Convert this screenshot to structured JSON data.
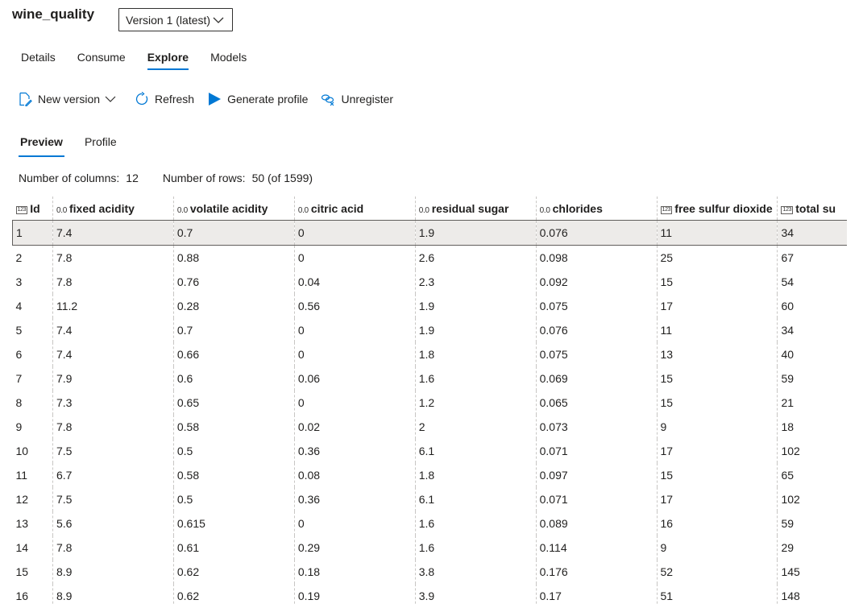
{
  "dataset": {
    "title": "wine_quality",
    "version_selected": "Version 1 (latest)"
  },
  "tabs": [
    {
      "label": "Details",
      "active": false
    },
    {
      "label": "Consume",
      "active": false
    },
    {
      "label": "Explore",
      "active": true
    },
    {
      "label": "Models",
      "active": false
    }
  ],
  "toolbar": {
    "new_version": "New version",
    "refresh": "Refresh",
    "generate_profile": "Generate profile",
    "unregister": "Unregister"
  },
  "subtabs": [
    {
      "label": "Preview",
      "active": true
    },
    {
      "label": "Profile",
      "active": false
    }
  ],
  "summary": {
    "columns_label": "Number of columns:",
    "columns_value": "12",
    "rows_label": "Number of rows:",
    "rows_value": "50 (of 1599)"
  },
  "table": {
    "columns": [
      {
        "name": "Id",
        "type": "int",
        "type_glyph": "123"
      },
      {
        "name": "fixed acidity",
        "type": "float",
        "type_glyph": "0.0"
      },
      {
        "name": "volatile acidity",
        "type": "float",
        "type_glyph": "0.0"
      },
      {
        "name": "citric acid",
        "type": "float",
        "type_glyph": "0.0"
      },
      {
        "name": "residual sugar",
        "type": "float",
        "type_glyph": "0.0"
      },
      {
        "name": "chlorides",
        "type": "float",
        "type_glyph": "0.0"
      },
      {
        "name": "free sulfur dioxide",
        "type": "int",
        "type_glyph": "123"
      },
      {
        "name": "total su",
        "type": "int",
        "type_glyph": "123"
      }
    ],
    "rows": [
      [
        "1",
        "7.4",
        "0.7",
        "0",
        "1.9",
        "0.076",
        "11",
        "34"
      ],
      [
        "2",
        "7.8",
        "0.88",
        "0",
        "2.6",
        "0.098",
        "25",
        "67"
      ],
      [
        "3",
        "7.8",
        "0.76",
        "0.04",
        "2.3",
        "0.092",
        "15",
        "54"
      ],
      [
        "4",
        "11.2",
        "0.28",
        "0.56",
        "1.9",
        "0.075",
        "17",
        "60"
      ],
      [
        "5",
        "7.4",
        "0.7",
        "0",
        "1.9",
        "0.076",
        "11",
        "34"
      ],
      [
        "6",
        "7.4",
        "0.66",
        "0",
        "1.8",
        "0.075",
        "13",
        "40"
      ],
      [
        "7",
        "7.9",
        "0.6",
        "0.06",
        "1.6",
        "0.069",
        "15",
        "59"
      ],
      [
        "8",
        "7.3",
        "0.65",
        "0",
        "1.2",
        "0.065",
        "15",
        "21"
      ],
      [
        "9",
        "7.8",
        "0.58",
        "0.02",
        "2",
        "0.073",
        "9",
        "18"
      ],
      [
        "10",
        "7.5",
        "0.5",
        "0.36",
        "6.1",
        "0.071",
        "17",
        "102"
      ],
      [
        "11",
        "6.7",
        "0.58",
        "0.08",
        "1.8",
        "0.097",
        "15",
        "65"
      ],
      [
        "12",
        "7.5",
        "0.5",
        "0.36",
        "6.1",
        "0.071",
        "17",
        "102"
      ],
      [
        "13",
        "5.6",
        "0.615",
        "0",
        "1.6",
        "0.089",
        "16",
        "59"
      ],
      [
        "14",
        "7.8",
        "0.61",
        "0.29",
        "1.6",
        "0.114",
        "9",
        "29"
      ],
      [
        "15",
        "8.9",
        "0.62",
        "0.18",
        "3.8",
        "0.176",
        "52",
        "145"
      ],
      [
        "16",
        "8.9",
        "0.62",
        "0.19",
        "3.9",
        "0.17",
        "51",
        "148"
      ]
    ],
    "selected_row": 0
  },
  "colors": {
    "accent": "#0078d4",
    "selected_row": "#edebe9"
  },
  "icons": [
    "edit-document-icon",
    "chevron-down-icon",
    "refresh-icon",
    "play-icon",
    "unregister-link-icon"
  ]
}
